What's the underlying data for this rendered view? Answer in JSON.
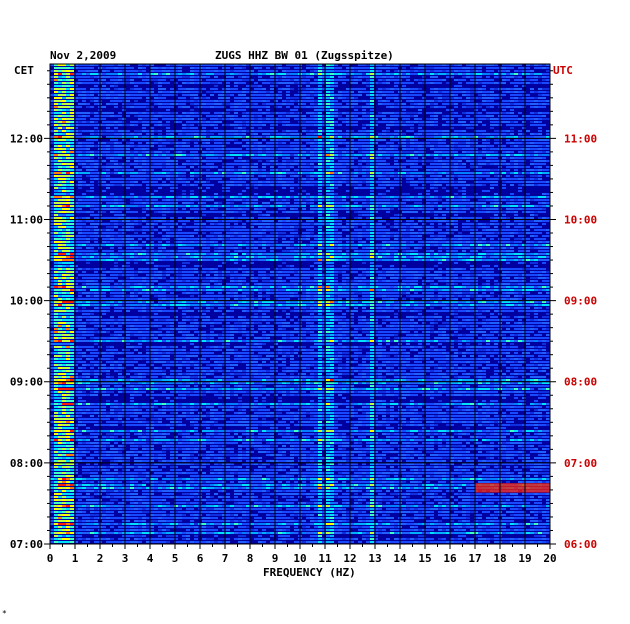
{
  "chart_data": {
    "type": "heatmap",
    "date": "Nov 2,2009",
    "title": "ZUGS HHZ BW 01 (Zugsspitze)",
    "left_axis_label": "CET",
    "right_axis_label": "UTC",
    "xlabel": "FREQUENCY (HZ)",
    "xlim": [
      0,
      20
    ],
    "x_ticks": [
      "0",
      "1",
      "2",
      "3",
      "4",
      "5",
      "6",
      "7",
      "8",
      "9",
      "10",
      "11",
      "12",
      "13",
      "14",
      "15",
      "16",
      "17",
      "18",
      "19",
      "20"
    ],
    "y_ticks_left": [
      "12:00",
      "11:00",
      "10:00",
      "09:00",
      "08:00",
      "07:00"
    ],
    "y_ticks_right": [
      "11:00",
      "10:00",
      "09:00",
      "08:00",
      "07:00",
      "06:00"
    ],
    "time_range_cet": [
      "07:00",
      "12:55"
    ],
    "colors": {
      "background": "#0000a0",
      "low": "#1030e0",
      "mid": "#00c0ff",
      "high": "#ffff00",
      "peak": "#ff2000",
      "grid": "#000000",
      "utc_label": "#cc0000"
    },
    "features": [
      {
        "label": "strong low-frequency energy",
        "freq_hz": [
          0.1,
          0.8
        ]
      },
      {
        "label": "persistent line",
        "freq_hz": 10.7
      },
      {
        "label": "persistent line",
        "freq_hz": 11.1
      },
      {
        "label": "narrow line",
        "freq_hz": 12.8
      },
      {
        "label": "band",
        "freq_hz": [
          17,
          20
        ],
        "time_cet": [
          "07:38",
          "07:45"
        ]
      }
    ],
    "footer_mark": "*"
  }
}
